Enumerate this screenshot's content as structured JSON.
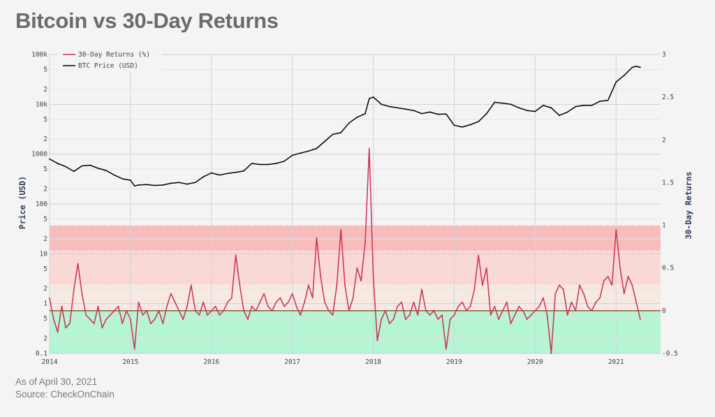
{
  "header": {
    "title": "Bitcoin vs 30-Day Returns"
  },
  "footer": {
    "as_of": "As of April 30, 2021",
    "source": "Source: CheckOnChain"
  },
  "colors": {
    "price": "#000000",
    "returns": "#cc2f55",
    "zero_line": "#8a4b2a"
  },
  "chart_data": {
    "type": "line",
    "legend_position": "top-left",
    "grid": true,
    "x_axis": {
      "range": [
        2014.0,
        2021.55
      ],
      "ticks": [
        2014,
        2015,
        2016,
        2017,
        2018,
        2019,
        2020,
        2021
      ]
    },
    "y_left": {
      "label": "Price (USD)",
      "scale": "log",
      "range": [
        0.1,
        100000
      ],
      "ticks": [
        {
          "v": 0.1,
          "t": "0.1"
        },
        {
          "v": 0.2,
          "t": "2"
        },
        {
          "v": 0.5,
          "t": "5"
        },
        {
          "v": 1,
          "t": "1"
        },
        {
          "v": 2,
          "t": "2"
        },
        {
          "v": 5,
          "t": "5"
        },
        {
          "v": 10,
          "t": "10"
        },
        {
          "v": 20,
          "t": "2"
        },
        {
          "v": 50,
          "t": "5"
        },
        {
          "v": 100,
          "t": "100"
        },
        {
          "v": 200,
          "t": "2"
        },
        {
          "v": 500,
          "t": "5"
        },
        {
          "v": 1000,
          "t": "1000"
        },
        {
          "v": 2000,
          "t": "2"
        },
        {
          "v": 5000,
          "t": "5"
        },
        {
          "v": 10000,
          "t": "10k"
        },
        {
          "v": 20000,
          "t": "2"
        },
        {
          "v": 50000,
          "t": "5"
        },
        {
          "v": 100000,
          "t": "100k"
        }
      ]
    },
    "y_right": {
      "label": "30-Day Returns",
      "scale": "linear",
      "range": [
        -0.5,
        3
      ],
      "ticks": [
        -0.5,
        0,
        0.5,
        1,
        1.5,
        2,
        2.5,
        3
      ]
    },
    "bands": [
      {
        "from": 0.7,
        "to": 1.0,
        "color": "#f7b3b3"
      },
      {
        "from": 0.3,
        "to": 0.7,
        "color": "#f9d2cf"
      },
      {
        "from": 0.0,
        "to": 0.3,
        "color": "#f6e6de"
      },
      {
        "from": -0.5,
        "to": 0.0,
        "color": "#a8f4cc"
      }
    ],
    "series": [
      {
        "name": "30-Day Returns (%)",
        "axis": "right",
        "x": [
          2014.0,
          2014.05,
          2014.1,
          2014.15,
          2014.2,
          2014.25,
          2014.3,
          2014.35,
          2014.4,
          2014.45,
          2014.5,
          2014.55,
          2014.6,
          2014.65,
          2014.7,
          2014.75,
          2014.8,
          2014.85,
          2014.9,
          2014.95,
          2015.0,
          2015.05,
          2015.1,
          2015.15,
          2015.2,
          2015.25,
          2015.3,
          2015.35,
          2015.4,
          2015.45,
          2015.5,
          2015.55,
          2015.6,
          2015.65,
          2015.7,
          2015.75,
          2015.8,
          2015.85,
          2015.9,
          2015.95,
          2016.0,
          2016.05,
          2016.1,
          2016.15,
          2016.2,
          2016.25,
          2016.3,
          2016.35,
          2016.4,
          2016.45,
          2016.5,
          2016.55,
          2016.6,
          2016.65,
          2016.7,
          2016.75,
          2016.8,
          2016.85,
          2016.9,
          2016.95,
          2017.0,
          2017.05,
          2017.1,
          2017.15,
          2017.2,
          2017.25,
          2017.3,
          2017.35,
          2017.4,
          2017.45,
          2017.5,
          2017.55,
          2017.6,
          2017.65,
          2017.7,
          2017.75,
          2017.8,
          2017.85,
          2017.9,
          2017.95,
          2018.0,
          2018.05,
          2018.1,
          2018.15,
          2018.2,
          2018.25,
          2018.3,
          2018.35,
          2018.4,
          2018.45,
          2018.5,
          2018.55,
          2018.6,
          2018.65,
          2018.7,
          2018.75,
          2018.8,
          2018.85,
          2018.9,
          2018.95,
          2019.0,
          2019.05,
          2019.1,
          2019.15,
          2019.2,
          2019.25,
          2019.3,
          2019.35,
          2019.4,
          2019.45,
          2019.5,
          2019.55,
          2019.6,
          2019.65,
          2019.7,
          2019.75,
          2019.8,
          2019.85,
          2019.9,
          2019.95,
          2020.0,
          2020.05,
          2020.1,
          2020.15,
          2020.2,
          2020.25,
          2020.3,
          2020.35,
          2020.4,
          2020.45,
          2020.5,
          2020.55,
          2020.6,
          2020.65,
          2020.7,
          2020.75,
          2020.8,
          2020.85,
          2020.9,
          2020.95,
          2021.0,
          2021.05,
          2021.1,
          2021.15,
          2021.2,
          2021.25,
          2021.3
        ],
        "values": [
          0.15,
          -0.1,
          -0.25,
          0.05,
          -0.2,
          -0.15,
          0.25,
          0.55,
          0.2,
          -0.05,
          -0.1,
          -0.15,
          0.05,
          -0.2,
          -0.1,
          -0.05,
          0.0,
          0.05,
          -0.15,
          0.0,
          -0.1,
          -0.45,
          0.1,
          -0.05,
          0.0,
          -0.15,
          -0.1,
          0.0,
          -0.15,
          0.05,
          0.2,
          0.1,
          0.0,
          -0.1,
          0.05,
          0.3,
          0.0,
          -0.05,
          0.1,
          -0.05,
          0.0,
          0.05,
          -0.05,
          0.0,
          0.1,
          0.15,
          0.65,
          0.3,
          0.0,
          -0.1,
          0.05,
          0.0,
          0.1,
          0.2,
          0.05,
          0.0,
          0.1,
          0.15,
          0.05,
          0.1,
          0.2,
          0.05,
          -0.05,
          0.1,
          0.3,
          0.15,
          0.85,
          0.4,
          0.1,
          0.0,
          -0.05,
          0.3,
          0.95,
          0.3,
          0.0,
          0.15,
          0.5,
          0.35,
          0.8,
          1.9,
          0.4,
          -0.35,
          -0.1,
          0.0,
          -0.15,
          -0.1,
          0.05,
          0.1,
          -0.1,
          -0.05,
          0.1,
          -0.05,
          0.25,
          0.0,
          -0.05,
          0.0,
          -0.1,
          -0.05,
          -0.45,
          -0.1,
          -0.05,
          0.05,
          0.1,
          0.0,
          0.05,
          0.25,
          0.65,
          0.3,
          0.5,
          -0.05,
          0.05,
          -0.1,
          0.0,
          0.1,
          -0.15,
          -0.05,
          0.05,
          0.0,
          -0.1,
          -0.05,
          0.0,
          0.05,
          0.15,
          -0.05,
          -0.5,
          0.2,
          0.3,
          0.25,
          -0.05,
          0.1,
          0.0,
          0.3,
          0.2,
          0.05,
          0.0,
          0.1,
          0.15,
          0.35,
          0.4,
          0.3,
          0.95,
          0.5,
          0.2,
          0.4,
          0.3,
          0.1,
          -0.1
        ]
      },
      {
        "name": "BTC Price (USD)",
        "axis": "left",
        "x": [
          2014.0,
          2014.1,
          2014.2,
          2014.3,
          2014.4,
          2014.5,
          2014.6,
          2014.7,
          2014.8,
          2014.9,
          2015.0,
          2015.05,
          2015.1,
          2015.2,
          2015.3,
          2015.4,
          2015.5,
          2015.6,
          2015.7,
          2015.8,
          2015.9,
          2016.0,
          2016.1,
          2016.2,
          2016.3,
          2016.4,
          2016.5,
          2016.6,
          2016.7,
          2016.8,
          2016.9,
          2017.0,
          2017.1,
          2017.2,
          2017.3,
          2017.4,
          2017.5,
          2017.6,
          2017.7,
          2017.8,
          2017.9,
          2017.95,
          2018.0,
          2018.1,
          2018.2,
          2018.3,
          2018.4,
          2018.5,
          2018.6,
          2018.7,
          2018.8,
          2018.9,
          2019.0,
          2019.1,
          2019.2,
          2019.3,
          2019.4,
          2019.5,
          2019.6,
          2019.7,
          2019.8,
          2019.9,
          2020.0,
          2020.1,
          2020.2,
          2020.3,
          2020.4,
          2020.5,
          2020.6,
          2020.7,
          2020.8,
          2020.9,
          2021.0,
          2021.1,
          2021.2,
          2021.25,
          2021.3
        ],
        "values": [
          800,
          650,
          560,
          450,
          580,
          600,
          520,
          470,
          380,
          320,
          300,
          230,
          240,
          245,
          235,
          240,
          260,
          270,
          250,
          270,
          350,
          420,
          380,
          410,
          430,
          460,
          650,
          620,
          620,
          650,
          720,
          950,
          1050,
          1150,
          1300,
          1800,
          2500,
          2700,
          4200,
          5500,
          6500,
          13000,
          14000,
          10000,
          9000,
          8500,
          8000,
          7500,
          6500,
          7000,
          6300,
          6400,
          3800,
          3500,
          3900,
          4500,
          6500,
          11000,
          10500,
          10000,
          8500,
          7500,
          7200,
          9500,
          8500,
          6000,
          7000,
          9000,
          9500,
          9500,
          11500,
          12000,
          28000,
          38000,
          55000,
          58000,
          55000
        ]
      }
    ]
  }
}
